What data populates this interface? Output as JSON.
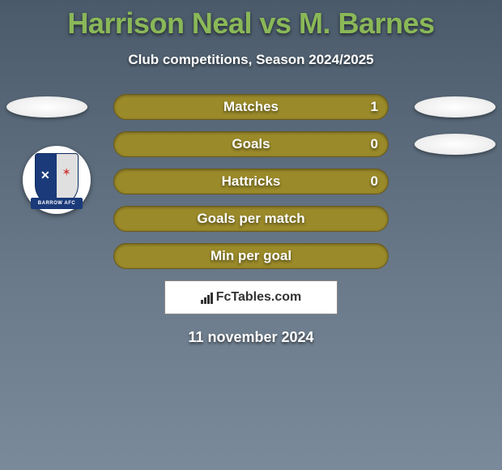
{
  "title": "Harrison Neal vs M. Barnes",
  "subtitle": "Club competitions, Season 2024/2025",
  "stats": [
    {
      "label": "Matches",
      "value": "1",
      "show_value": true,
      "left_oval": true,
      "right_oval": true
    },
    {
      "label": "Goals",
      "value": "0",
      "show_value": true,
      "left_oval": false,
      "right_oval": true
    },
    {
      "label": "Hattricks",
      "value": "0",
      "show_value": true,
      "left_oval": false,
      "right_oval": false
    },
    {
      "label": "Goals per match",
      "value": "",
      "show_value": false,
      "left_oval": false,
      "right_oval": false
    },
    {
      "label": "Min per goal",
      "value": "",
      "show_value": false,
      "left_oval": false,
      "right_oval": false
    }
  ],
  "crest": {
    "banner_text": "BARROW AFC"
  },
  "brand": {
    "name": "FcTables.com"
  },
  "date": "11 november 2024",
  "colors": {
    "title_color": "#8ab858",
    "bar_fill": "#9a8a2a",
    "bar_border": "#6a5a1a"
  }
}
